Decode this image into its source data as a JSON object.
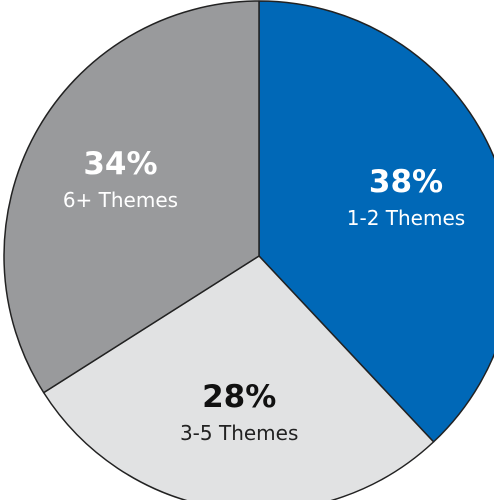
{
  "chart_data": {
    "type": "pie",
    "slices": [
      {
        "label": "1-2 Themes",
        "value": 38,
        "value_text": "38%",
        "color": "#0068b7",
        "text_color": "#ffffff",
        "pct_color": "#ffffff"
      },
      {
        "label": "3-5 Themes",
        "value": 28,
        "value_text": "28%",
        "color": "#e1e2e3",
        "text_color": "#222222",
        "pct_color": "#111111"
      },
      {
        "label": "6+ Themes",
        "value": 34,
        "value_text": "34%",
        "color": "#999a9c",
        "text_color": "#ffffff",
        "pct_color": "#ffffff"
      }
    ],
    "start_angle": "12 o'clock",
    "direction": "clockwise",
    "slice_border_color": "#222222"
  }
}
